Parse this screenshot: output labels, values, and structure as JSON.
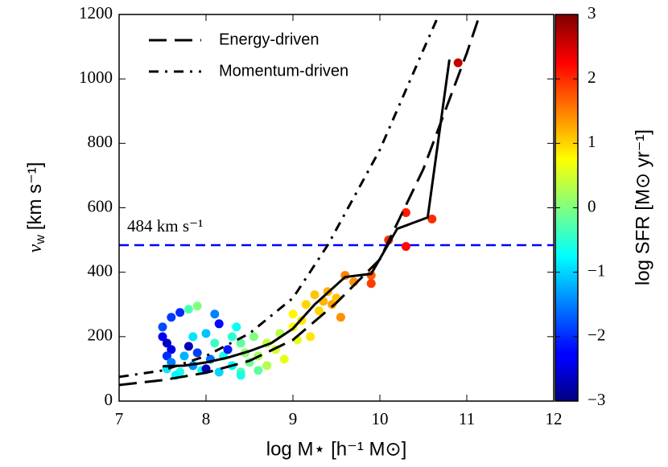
{
  "chart_data": {
    "type": "scatter",
    "xlabel": "log M⋆ [h⁻¹ M⊙]",
    "ylabel": {
      "symbol": "v",
      "subscript": "w",
      "unit": "[km s⁻¹]"
    },
    "colorbar_label": "log SFR [M⊙ yr⁻¹]",
    "xlim": [
      7,
      12
    ],
    "xticks": [
      7,
      8,
      9,
      10,
      11,
      12
    ],
    "ylim": [
      0,
      1200
    ],
    "yticks": [
      0,
      200,
      400,
      600,
      800,
      1000,
      1200
    ],
    "clim": [
      -3,
      3
    ],
    "cticks": [
      {
        "value": -3,
        "label": "−3"
      },
      {
        "value": -2,
        "label": "−2"
      },
      {
        "value": -1,
        "label": "−1"
      },
      0,
      1,
      2,
      3
    ],
    "colormap": "jet",
    "legend": "upper left",
    "hline": {
      "value": 484,
      "label": "484 km s⁻¹",
      "color": "#0000ff"
    },
    "series": [
      {
        "name": "Energy-driven",
        "style": "dashed",
        "color": "#000000",
        "x": [
          7,
          7.5,
          8,
          8.5,
          9,
          9.5,
          10,
          10.5,
          11,
          11.15
        ],
        "values": [
          50,
          65,
          88,
          125,
          190,
          305,
          440,
          720,
          1080,
          1200
        ]
      },
      {
        "name": "Momentum-driven",
        "style": "dashdot",
        "color": "#000000",
        "x": [
          7,
          7.5,
          8,
          8.5,
          9,
          9.4,
          10,
          10.5,
          10.68
        ],
        "values": [
          75,
          95,
          140,
          210,
          320,
          484,
          780,
          1090,
          1200
        ]
      },
      {
        "style": "solid",
        "color": "#000000",
        "x": [
          7.5,
          7.75,
          8,
          8.25,
          8.5,
          8.75,
          9,
          9.25,
          9.6,
          9.9,
          10.2,
          10.55,
          10.8
        ],
        "values": [
          108,
          110,
          120,
          135,
          155,
          180,
          225,
          300,
          385,
          395,
          535,
          570,
          1060
        ]
      }
    ],
    "scatter": {
      "x": [
        7.5,
        7.5,
        7.55,
        7.6,
        7.55,
        7.6,
        7.55,
        7.7,
        7.65,
        7.75,
        7.7,
        7.8,
        7.85,
        7.8,
        7.9,
        7.85,
        7.95,
        7.9,
        8.0,
        8.0,
        8.05,
        8.1,
        8.15,
        8.15,
        8.2,
        8.25,
        8.3,
        8.3,
        8.35,
        8.4,
        8.4,
        8.45,
        8.5,
        8.55,
        8.6,
        8.7,
        8.7,
        8.8,
        8.85,
        8.9,
        9.0,
        9.0,
        9.05,
        9.1,
        9.15,
        9.2,
        9.25,
        9.3,
        9.35,
        9.4,
        9.45,
        9.5,
        9.55,
        9.6,
        9.7,
        9.9,
        9.9,
        10.1,
        10.3,
        10.3,
        10.6,
        10.9,
        8.4,
        8.6,
        7.6,
        8.1
      ],
      "values": [
        230,
        200,
        180,
        160,
        140,
        120,
        100,
        90,
        80,
        140,
        275,
        285,
        200,
        170,
        150,
        110,
        95,
        295,
        100,
        210,
        130,
        180,
        90,
        240,
        140,
        160,
        110,
        200,
        230,
        180,
        90,
        150,
        120,
        200,
        140,
        110,
        180,
        160,
        210,
        130,
        230,
        270,
        190,
        250,
        300,
        200,
        330,
        280,
        310,
        340,
        300,
        320,
        260,
        390,
        370,
        390,
        365,
        500,
        480,
        585,
        565,
        1050,
        80,
        95,
        260,
        270
      ],
      "c": [
        -1.8,
        -2.3,
        -2.6,
        -2.4,
        -2.0,
        -1.5,
        -0.9,
        -0.6,
        -0.8,
        -1.2,
        -2.0,
        -0.3,
        -0.9,
        -2.7,
        -1.9,
        -1.4,
        -0.7,
        0.0,
        -2.6,
        -1.1,
        -1.6,
        -0.4,
        -1.0,
        -2.2,
        -0.6,
        -2.1,
        -0.8,
        -0.5,
        -0.7,
        -0.2,
        -0.3,
        0.1,
        -0.1,
        0.0,
        0.2,
        0.3,
        0.4,
        0.5,
        0.3,
        0.6,
        0.7,
        0.8,
        0.6,
        0.9,
        1.0,
        0.9,
        1.1,
        1.0,
        1.2,
        1.2,
        1.3,
        1.1,
        1.4,
        1.5,
        1.4,
        1.7,
        1.9,
        2.0,
        2.2,
        2.1,
        2.0,
        2.6,
        -0.6,
        -0.2,
        -1.9,
        -1.5
      ]
    }
  }
}
